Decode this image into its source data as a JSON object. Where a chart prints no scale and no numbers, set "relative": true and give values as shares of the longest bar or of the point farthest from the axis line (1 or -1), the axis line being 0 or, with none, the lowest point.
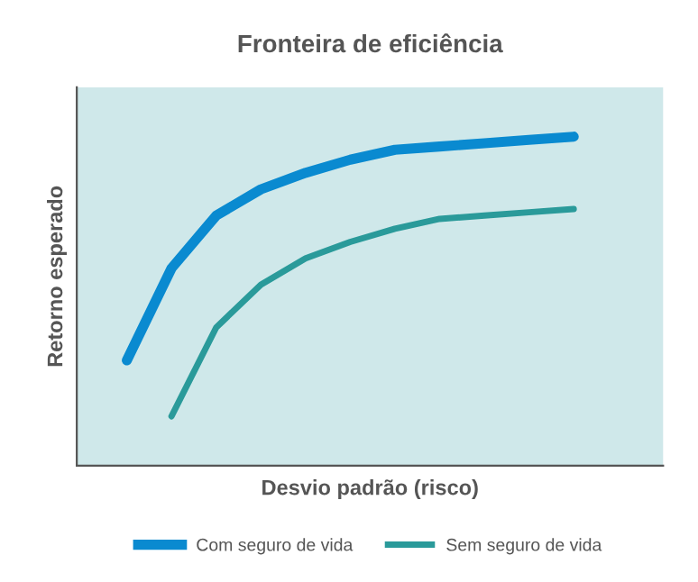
{
  "chart_data": {
    "type": "line",
    "title": "Fronteira de eficiência",
    "xlabel": "Desvio padrão (risco)",
    "ylabel": "Retorno esperado",
    "relative": true,
    "legend": "bottom",
    "marker": "none",
    "line_style": "solid",
    "categories": [
      null,
      null,
      null,
      null,
      null,
      null,
      null,
      null,
      null,
      null,
      null,
      null,
      null,
      null
    ],
    "series": [
      {
        "name": "Com seguro de vida",
        "color": "#0a8ad0",
        "values": [
          null,
          0.32,
          0.6,
          0.76,
          0.84,
          0.89,
          0.93,
          0.96,
          0.97,
          0.98,
          0.99,
          1.0,
          null,
          null
        ]
      },
      {
        "name": "Sem seguro de vida",
        "color": "#2a9a9a",
        "values": [
          null,
          null,
          0.15,
          0.42,
          0.55,
          0.63,
          0.68,
          0.72,
          0.75,
          0.76,
          0.77,
          0.78,
          null,
          null
        ]
      }
    ]
  }
}
